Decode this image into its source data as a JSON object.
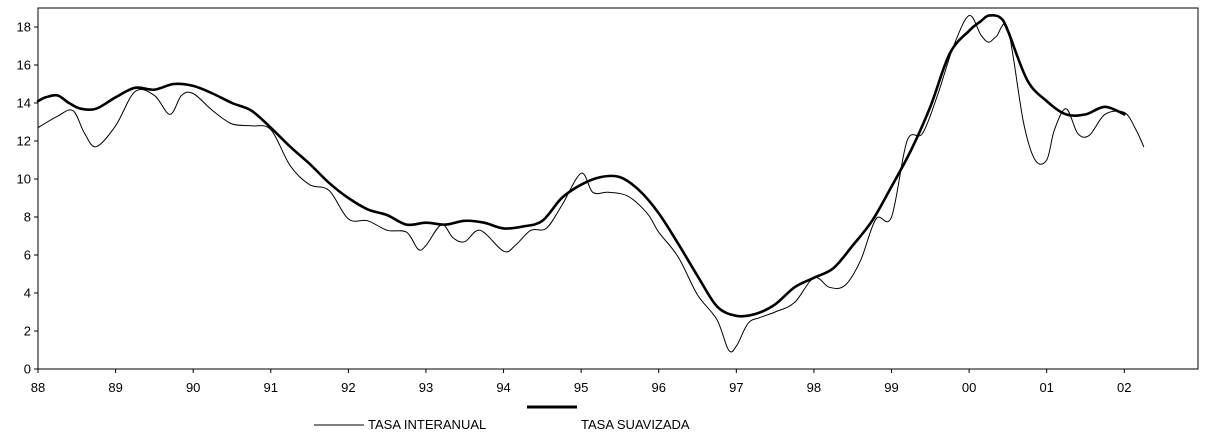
{
  "chart_data": {
    "type": "line",
    "title": "",
    "xlabel": "",
    "ylabel": "",
    "x_tick_labels": [
      "88",
      "89",
      "90",
      "91",
      "92",
      "93",
      "94",
      "95",
      "96",
      "97",
      "98",
      "99",
      "00",
      "01",
      "02"
    ],
    "y_ticks": [
      0,
      2,
      4,
      6,
      8,
      10,
      12,
      14,
      16,
      18
    ],
    "xlim": [
      1988.0,
      2002.95
    ],
    "ylim": [
      0,
      19
    ],
    "grid": false,
    "legend_position": "bottom-center",
    "series": [
      {
        "name": "TASA INTERANUAL",
        "color": "#000000",
        "style": "thin",
        "x": [
          1988.0,
          1988.25,
          1988.45,
          1988.6,
          1988.75,
          1989.0,
          1989.25,
          1989.5,
          1989.7,
          1989.85,
          1990.0,
          1990.25,
          1990.5,
          1990.75,
          1991.0,
          1991.25,
          1991.5,
          1991.75,
          1992.0,
          1992.25,
          1992.5,
          1992.75,
          1992.9,
          1993.0,
          1993.2,
          1993.35,
          1993.5,
          1993.7,
          1994.0,
          1994.15,
          1994.35,
          1994.55,
          1994.75,
          1995.0,
          1995.15,
          1995.35,
          1995.6,
          1995.85,
          1996.0,
          1996.25,
          1996.5,
          1996.75,
          1996.9,
          1997.0,
          1997.15,
          1997.3,
          1997.5,
          1997.75,
          1998.0,
          1998.2,
          1998.4,
          1998.6,
          1998.8,
          1999.0,
          1999.2,
          1999.4,
          1999.6,
          1999.8,
          2000.0,
          2000.15,
          2000.25,
          2000.35,
          2000.5,
          2000.7,
          2000.85,
          2001.0,
          2001.1,
          2001.25,
          2001.4,
          2001.55,
          2001.75,
          2002.0,
          2002.15,
          2002.25
        ],
        "values": [
          12.7,
          13.3,
          13.6,
          12.4,
          11.7,
          12.8,
          14.6,
          14.4,
          13.4,
          14.4,
          14.5,
          13.6,
          12.9,
          12.8,
          12.6,
          10.7,
          9.7,
          9.4,
          7.9,
          7.8,
          7.3,
          7.2,
          6.3,
          6.5,
          7.6,
          6.9,
          6.7,
          7.3,
          6.2,
          6.5,
          7.3,
          7.4,
          8.6,
          10.3,
          9.3,
          9.3,
          9.1,
          8.2,
          7.2,
          5.9,
          3.9,
          2.6,
          1.0,
          1.2,
          2.4,
          2.7,
          3.0,
          3.5,
          4.8,
          4.3,
          4.4,
          5.7,
          7.9,
          8.0,
          12.0,
          12.4,
          14.5,
          17.0,
          18.6,
          17.6,
          17.2,
          17.5,
          17.9,
          13.0,
          11.0,
          11.0,
          12.6,
          13.7,
          12.4,
          12.3,
          13.4,
          13.5,
          12.6,
          11.7
        ]
      },
      {
        "name": "TASA SUAVIZADA",
        "color": "#000000",
        "style": "thick",
        "x": [
          1988.0,
          1988.1,
          1988.25,
          1988.4,
          1988.55,
          1988.75,
          1989.0,
          1989.25,
          1989.5,
          1989.75,
          1990.0,
          1990.25,
          1990.5,
          1990.75,
          1991.0,
          1991.25,
          1991.5,
          1991.75,
          1992.0,
          1992.25,
          1992.5,
          1992.75,
          1993.0,
          1993.25,
          1993.5,
          1993.75,
          1994.0,
          1994.25,
          1994.5,
          1994.75,
          1995.0,
          1995.25,
          1995.5,
          1995.75,
          1996.0,
          1996.25,
          1996.5,
          1996.75,
          1997.0,
          1997.25,
          1997.5,
          1997.75,
          1998.0,
          1998.25,
          1998.5,
          1998.75,
          1999.0,
          1999.25,
          1999.5,
          1999.75,
          2000.0,
          2000.15,
          2000.25,
          2000.4,
          2000.5,
          2000.75,
          2001.0,
          2001.25,
          2001.5,
          2001.75,
          2002.0
        ],
        "values": [
          14.1,
          14.3,
          14.4,
          14.0,
          13.7,
          13.7,
          14.3,
          14.8,
          14.7,
          15.0,
          14.9,
          14.5,
          14.0,
          13.6,
          12.7,
          11.7,
          10.8,
          9.8,
          9.0,
          8.4,
          8.1,
          7.6,
          7.7,
          7.6,
          7.8,
          7.7,
          7.4,
          7.5,
          7.8,
          9.0,
          9.7,
          10.1,
          10.1,
          9.4,
          8.2,
          6.6,
          4.9,
          3.3,
          2.8,
          2.9,
          3.4,
          4.3,
          4.8,
          5.3,
          6.5,
          7.8,
          9.6,
          11.5,
          13.8,
          16.6,
          17.8,
          18.3,
          18.6,
          18.5,
          17.8,
          15.2,
          14.1,
          13.4,
          13.4,
          13.8,
          13.4
        ]
      }
    ]
  }
}
